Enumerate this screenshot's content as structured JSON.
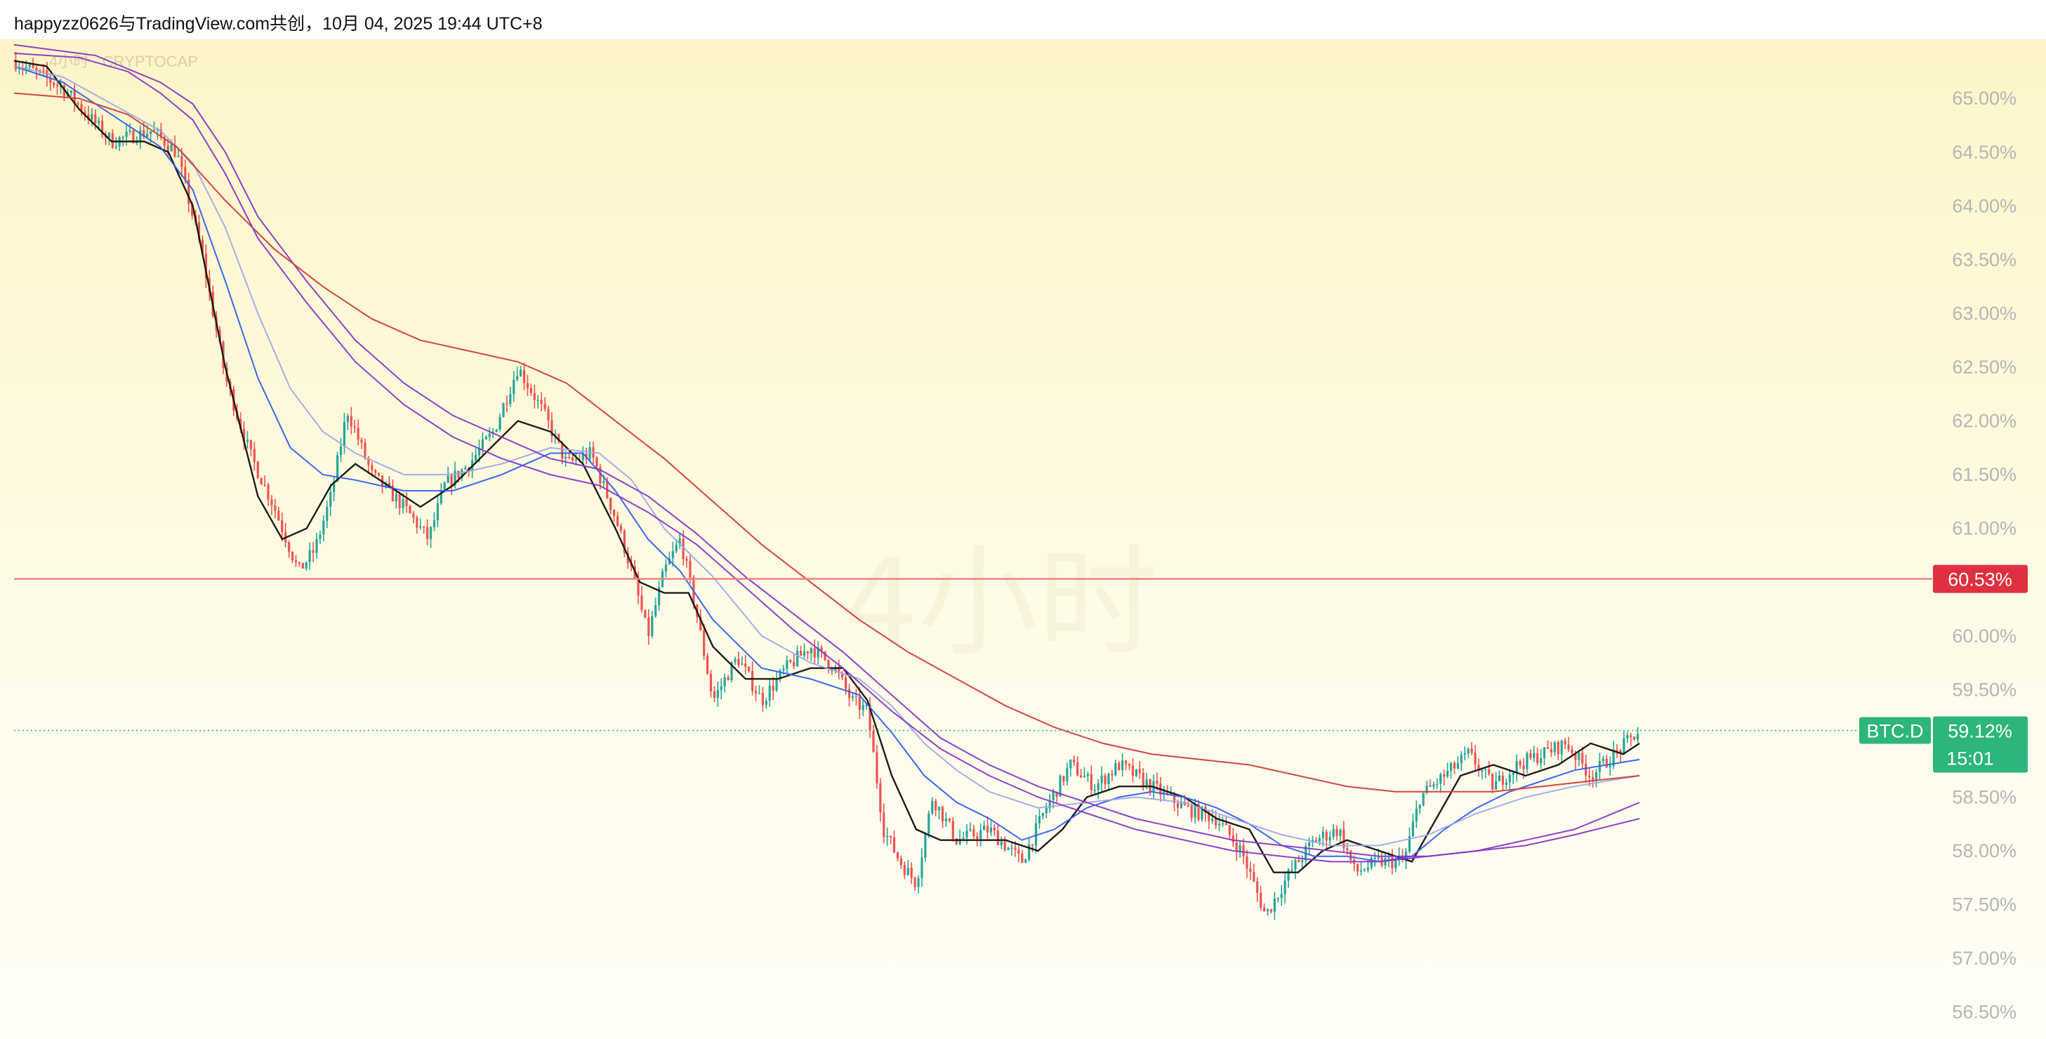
{
  "header": {
    "text": "happyzz0626与TradingView.com共创，10月 04, 2025 19:44 UTC+8"
  },
  "overlay": {
    "symbol_line": "4小时 · CRYPTOCAP",
    "watermark": "4小时"
  },
  "colors": {
    "up": "#26a69a",
    "down": "#ef5350",
    "ma_black": "#111111",
    "ma_blue": "#2f5ff0",
    "ma_lightblue": "#9aa6e8",
    "ma_purple": "#8a35c8",
    "ma_red": "#d23b3b",
    "hline": "#f08080",
    "hline_tag": "#e0303f",
    "price_tag": "#2db57a"
  },
  "chart_data": {
    "type": "candlestick",
    "symbol": "BTC.D",
    "ylim": [
      56.25,
      65.55
    ],
    "y_ticks": [
      "65.00%",
      "64.50%",
      "64.00%",
      "63.50%",
      "63.00%",
      "62.50%",
      "62.00%",
      "61.50%",
      "61.00%",
      "60.00%",
      "59.50%",
      "58.50%",
      "58.00%",
      "57.50%",
      "57.00%",
      "56.50%"
    ],
    "y_tick_values": [
      65.0,
      64.5,
      64.0,
      63.5,
      63.0,
      62.5,
      62.0,
      61.5,
      61.0,
      60.0,
      59.5,
      58.5,
      58.0,
      57.5,
      57.0,
      56.5
    ],
    "horizontal_line": {
      "value": 60.53,
      "label": "60.53%"
    },
    "last_price": {
      "value": 59.12,
      "label": "59.12%",
      "countdown": "15:01",
      "symbol": "BTC.D"
    },
    "x_range": [
      0,
      100
    ],
    "price_path": [
      [
        0,
        65.35
      ],
      [
        3,
        65.1
      ],
      [
        6,
        64.6
      ],
      [
        8.5,
        64.7
      ],
      [
        10,
        64.5
      ],
      [
        11.5,
        63.6
      ],
      [
        13,
        62.4
      ],
      [
        14.5,
        61.7
      ],
      [
        16,
        61.2
      ],
      [
        17.5,
        60.6
      ],
      [
        18.5,
        60.8
      ],
      [
        19.5,
        61.3
      ],
      [
        20.5,
        62.1
      ],
      [
        22,
        61.5
      ],
      [
        24,
        61.2
      ],
      [
        25.5,
        60.9
      ],
      [
        26.5,
        61.4
      ],
      [
        28,
        61.6
      ],
      [
        29.5,
        61.9
      ],
      [
        31,
        62.5
      ],
      [
        32.5,
        62.1
      ],
      [
        34,
        61.6
      ],
      [
        35.5,
        61.7
      ],
      [
        37,
        61.1
      ],
      [
        38,
        60.6
      ],
      [
        39,
        60.0
      ],
      [
        40,
        60.6
      ],
      [
        41,
        60.9
      ],
      [
        42,
        60.2
      ],
      [
        43,
        59.4
      ],
      [
        44.5,
        59.8
      ],
      [
        46,
        59.4
      ],
      [
        47.5,
        59.7
      ],
      [
        49,
        59.9
      ],
      [
        50.5,
        59.7
      ],
      [
        51.5,
        59.4
      ],
      [
        52.5,
        59.3
      ],
      [
        53.5,
        58.2
      ],
      [
        54.5,
        57.9
      ],
      [
        55.5,
        57.7
      ],
      [
        56.5,
        58.5
      ],
      [
        58,
        58.1
      ],
      [
        60,
        58.2
      ],
      [
        62,
        57.9
      ],
      [
        63.5,
        58.4
      ],
      [
        65,
        58.8
      ],
      [
        66.5,
        58.6
      ],
      [
        68,
        58.8
      ],
      [
        70,
        58.6
      ],
      [
        72,
        58.4
      ],
      [
        74,
        58.3
      ],
      [
        75.5,
        58.0
      ],
      [
        77,
        57.4
      ],
      [
        78.5,
        57.8
      ],
      [
        80,
        58.1
      ],
      [
        81.5,
        58.2
      ],
      [
        82.5,
        57.8
      ],
      [
        84,
        57.9
      ],
      [
        85.5,
        57.9
      ],
      [
        86.5,
        58.5
      ],
      [
        88,
        58.7
      ],
      [
        89.5,
        58.9
      ],
      [
        91,
        58.6
      ],
      [
        92.5,
        58.8
      ],
      [
        94,
        58.9
      ],
      [
        95.5,
        59.0
      ],
      [
        97,
        58.7
      ],
      [
        98.5,
        58.9
      ],
      [
        100,
        59.12
      ]
    ],
    "moving_averages": [
      {
        "color_key": "ma_black",
        "points": [
          [
            0,
            65.35
          ],
          [
            2,
            65.3
          ],
          [
            4,
            64.9
          ],
          [
            6,
            64.6
          ],
          [
            8,
            64.6
          ],
          [
            9.5,
            64.5
          ],
          [
            11,
            64.0
          ],
          [
            13,
            62.5
          ],
          [
            15,
            61.3
          ],
          [
            16.5,
            60.9
          ],
          [
            18,
            61.0
          ],
          [
            19.5,
            61.4
          ],
          [
            21,
            61.6
          ],
          [
            23,
            61.4
          ],
          [
            25,
            61.2
          ],
          [
            27,
            61.4
          ],
          [
            29,
            61.7
          ],
          [
            31,
            62.0
          ],
          [
            33,
            61.9
          ],
          [
            35,
            61.6
          ],
          [
            37,
            61.0
          ],
          [
            38.5,
            60.5
          ],
          [
            40,
            60.4
          ],
          [
            41.5,
            60.4
          ],
          [
            43,
            59.9
          ],
          [
            45,
            59.6
          ],
          [
            47,
            59.6
          ],
          [
            49,
            59.7
          ],
          [
            51,
            59.7
          ],
          [
            52.5,
            59.4
          ],
          [
            54,
            58.7
          ],
          [
            55.5,
            58.2
          ],
          [
            57,
            58.1
          ],
          [
            59,
            58.1
          ],
          [
            61,
            58.1
          ],
          [
            63,
            58.0
          ],
          [
            64.5,
            58.2
          ],
          [
            66,
            58.5
          ],
          [
            68,
            58.6
          ],
          [
            70,
            58.6
          ],
          [
            72,
            58.5
          ],
          [
            74,
            58.3
          ],
          [
            76,
            58.2
          ],
          [
            77.5,
            57.8
          ],
          [
            79,
            57.8
          ],
          [
            80.5,
            58.0
          ],
          [
            82,
            58.1
          ],
          [
            84,
            58.0
          ],
          [
            86,
            57.9
          ],
          [
            87.5,
            58.3
          ],
          [
            89,
            58.7
          ],
          [
            91,
            58.8
          ],
          [
            93,
            58.7
          ],
          [
            95,
            58.8
          ],
          [
            97,
            59.0
          ],
          [
            99,
            58.9
          ],
          [
            100,
            59.0
          ]
        ]
      },
      {
        "color_key": "ma_blue",
        "points": [
          [
            0,
            65.3
          ],
          [
            3,
            65.15
          ],
          [
            6,
            64.85
          ],
          [
            9,
            64.55
          ],
          [
            11,
            64.15
          ],
          [
            13,
            63.3
          ],
          [
            15,
            62.4
          ],
          [
            17,
            61.75
          ],
          [
            19,
            61.5
          ],
          [
            21,
            61.45
          ],
          [
            24,
            61.35
          ],
          [
            27,
            61.35
          ],
          [
            30,
            61.5
          ],
          [
            33,
            61.7
          ],
          [
            35,
            61.7
          ],
          [
            37,
            61.35
          ],
          [
            39,
            60.9
          ],
          [
            41,
            60.6
          ],
          [
            43,
            60.15
          ],
          [
            46,
            59.7
          ],
          [
            49,
            59.6
          ],
          [
            52,
            59.45
          ],
          [
            54,
            59.1
          ],
          [
            56,
            58.7
          ],
          [
            58,
            58.45
          ],
          [
            60,
            58.3
          ],
          [
            62,
            58.1
          ],
          [
            64,
            58.2
          ],
          [
            66,
            58.4
          ],
          [
            68,
            58.5
          ],
          [
            70,
            58.55
          ],
          [
            72,
            58.5
          ],
          [
            74,
            58.4
          ],
          [
            76,
            58.25
          ],
          [
            78,
            58.05
          ],
          [
            80,
            57.95
          ],
          [
            82,
            57.95
          ],
          [
            84,
            57.9
          ],
          [
            86,
            57.95
          ],
          [
            88,
            58.2
          ],
          [
            90,
            58.4
          ],
          [
            92,
            58.55
          ],
          [
            94,
            58.65
          ],
          [
            96,
            58.75
          ],
          [
            98,
            58.8
          ],
          [
            100,
            58.85
          ]
        ]
      },
      {
        "color_key": "ma_lightblue",
        "points": [
          [
            0,
            65.3
          ],
          [
            3,
            65.2
          ],
          [
            6,
            64.95
          ],
          [
            9,
            64.7
          ],
          [
            11,
            64.4
          ],
          [
            13,
            63.8
          ],
          [
            15,
            63.0
          ],
          [
            17,
            62.3
          ],
          [
            19,
            61.9
          ],
          [
            21,
            61.7
          ],
          [
            24,
            61.5
          ],
          [
            27,
            61.5
          ],
          [
            30,
            61.6
          ],
          [
            33,
            61.75
          ],
          [
            36,
            61.7
          ],
          [
            38,
            61.45
          ],
          [
            40,
            61.0
          ],
          [
            43,
            60.55
          ],
          [
            46,
            60.0
          ],
          [
            49,
            59.75
          ],
          [
            52,
            59.6
          ],
          [
            54,
            59.35
          ],
          [
            56,
            59.0
          ],
          [
            58,
            58.75
          ],
          [
            60,
            58.55
          ],
          [
            63,
            58.4
          ],
          [
            66,
            58.45
          ],
          [
            69,
            58.5
          ],
          [
            72,
            58.45
          ],
          [
            75,
            58.3
          ],
          [
            78,
            58.15
          ],
          [
            81,
            58.05
          ],
          [
            84,
            58.05
          ],
          [
            87,
            58.15
          ],
          [
            90,
            58.35
          ],
          [
            93,
            58.5
          ],
          [
            96,
            58.6
          ],
          [
            100,
            58.7
          ]
        ]
      },
      {
        "color_key": "ma_purple",
        "points": [
          [
            0,
            65.5
          ],
          [
            5,
            65.4
          ],
          [
            9,
            65.15
          ],
          [
            11,
            64.95
          ],
          [
            13,
            64.5
          ],
          [
            15,
            63.9
          ],
          [
            18,
            63.3
          ],
          [
            21,
            62.75
          ],
          [
            24,
            62.35
          ],
          [
            27,
            62.05
          ],
          [
            30,
            61.85
          ],
          [
            33,
            61.65
          ],
          [
            36,
            61.55
          ],
          [
            39,
            61.3
          ],
          [
            42,
            60.95
          ],
          [
            45,
            60.55
          ],
          [
            48,
            60.2
          ],
          [
            51,
            59.85
          ],
          [
            54,
            59.45
          ],
          [
            57,
            59.05
          ],
          [
            60,
            58.8
          ],
          [
            63,
            58.6
          ],
          [
            66,
            58.45
          ],
          [
            69,
            58.3
          ],
          [
            72,
            58.2
          ],
          [
            75,
            58.1
          ],
          [
            78,
            58.05
          ],
          [
            81,
            58.0
          ],
          [
            84,
            57.95
          ],
          [
            87,
            57.95
          ],
          [
            90,
            58.0
          ],
          [
            93,
            58.1
          ],
          [
            96,
            58.2
          ],
          [
            100,
            58.45
          ]
        ]
      },
      {
        "color_key": "ma_red",
        "points": [
          [
            0,
            65.05
          ],
          [
            4,
            65.0
          ],
          [
            7,
            64.85
          ],
          [
            10,
            64.55
          ],
          [
            13,
            64.05
          ],
          [
            16,
            63.6
          ],
          [
            19,
            63.25
          ],
          [
            22,
            62.95
          ],
          [
            25,
            62.75
          ],
          [
            28,
            62.65
          ],
          [
            31,
            62.55
          ],
          [
            34,
            62.35
          ],
          [
            37,
            62.0
          ],
          [
            40,
            61.65
          ],
          [
            43,
            61.25
          ],
          [
            46,
            60.85
          ],
          [
            49,
            60.5
          ],
          [
            52,
            60.15
          ],
          [
            55,
            59.85
          ],
          [
            58,
            59.6
          ],
          [
            61,
            59.35
          ],
          [
            64,
            59.15
          ],
          [
            67,
            59.0
          ],
          [
            70,
            58.9
          ],
          [
            73,
            58.85
          ],
          [
            76,
            58.8
          ],
          [
            79,
            58.7
          ],
          [
            82,
            58.6
          ],
          [
            85,
            58.55
          ],
          [
            88,
            58.55
          ],
          [
            91,
            58.55
          ],
          [
            94,
            58.6
          ],
          [
            97,
            58.65
          ],
          [
            100,
            58.7
          ]
        ]
      },
      {
        "color_key": "ma_purple",
        "points": [
          [
            0,
            65.42
          ],
          [
            4,
            65.38
          ],
          [
            7,
            65.25
          ],
          [
            9,
            65.05
          ],
          [
            11,
            64.8
          ],
          [
            13,
            64.3
          ],
          [
            15,
            63.7
          ],
          [
            18,
            63.1
          ],
          [
            21,
            62.55
          ],
          [
            24,
            62.15
          ],
          [
            27,
            61.85
          ],
          [
            30,
            61.65
          ],
          [
            33,
            61.5
          ],
          [
            36,
            61.4
          ],
          [
            39,
            61.15
          ],
          [
            42,
            60.85
          ],
          [
            45,
            60.45
          ],
          [
            48,
            60.05
          ],
          [
            51,
            59.7
          ],
          [
            54,
            59.3
          ],
          [
            57,
            58.95
          ],
          [
            60,
            58.7
          ],
          [
            63,
            58.5
          ],
          [
            66,
            58.35
          ],
          [
            69,
            58.2
          ],
          [
            72,
            58.1
          ],
          [
            75,
            58.0
          ],
          [
            78,
            57.95
          ],
          [
            81,
            57.9
          ],
          [
            84,
            57.9
          ],
          [
            87,
            57.95
          ],
          [
            90,
            58.0
          ],
          [
            93,
            58.05
          ],
          [
            96,
            58.15
          ],
          [
            100,
            58.3
          ]
        ]
      }
    ]
  }
}
